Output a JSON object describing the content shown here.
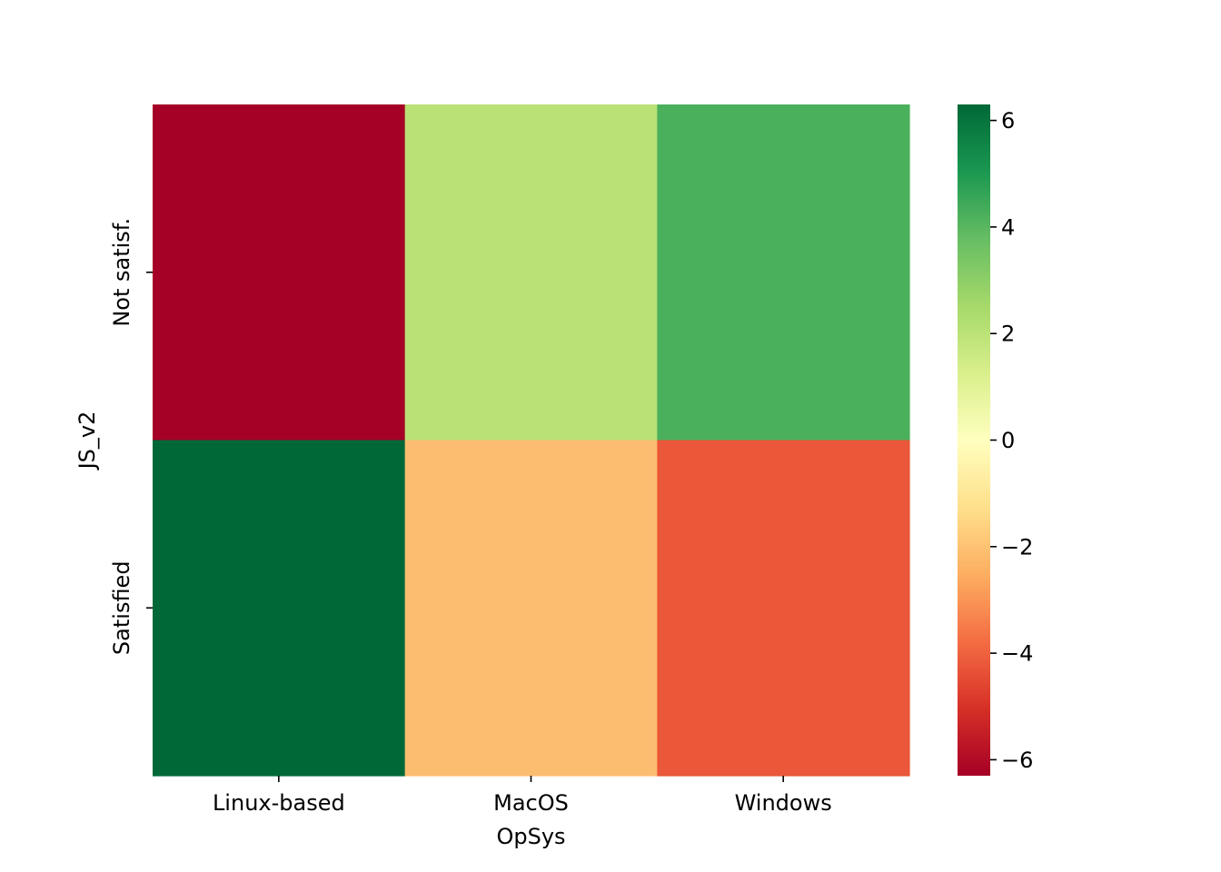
{
  "chart_data": {
    "type": "heatmap",
    "title": "",
    "xlabel": "OpSys",
    "ylabel": "JS_v2",
    "x_categories": [
      "Linux-based",
      "MacOS",
      "Windows"
    ],
    "y_categories": [
      "Not satisf.",
      "Satisfied"
    ],
    "values": [
      [
        -6.3,
        2.2,
        4.2
      ],
      [
        6.3,
        -2.2,
        -4.2
      ]
    ],
    "colormap": "RdYlGn",
    "colorbar": {
      "vmin": -6.3,
      "vmax": 6.3,
      "ticks": [
        6,
        4,
        2,
        0,
        -2,
        -4,
        -6
      ],
      "tick_labels": [
        "6",
        "4",
        "2",
        "0",
        "−2",
        "−4",
        "−6"
      ]
    },
    "cell_colors": [
      [
        "#a50026",
        "#b9e176",
        "#4bb05c"
      ],
      [
        "#006837",
        "#fcbd71",
        "#ea5739"
      ]
    ],
    "colormap_stops": [
      "#a50026",
      "#d73027",
      "#f46d43",
      "#fdae61",
      "#fee08b",
      "#ffffbf",
      "#d9ef8b",
      "#a6d96a",
      "#66bd63",
      "#1a9850",
      "#006837"
    ]
  }
}
